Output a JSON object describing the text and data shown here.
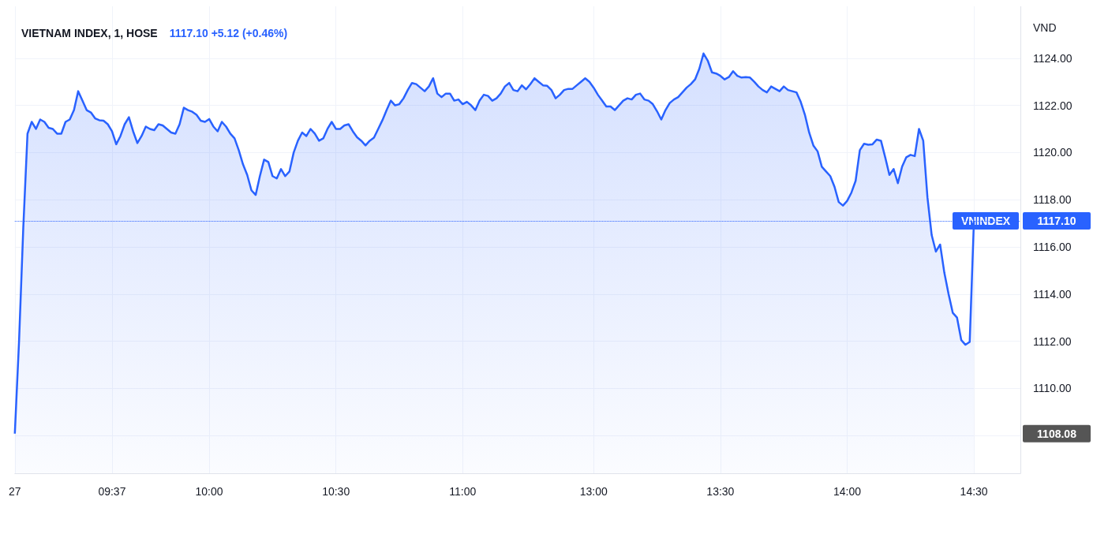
{
  "chart_data": {
    "type": "area",
    "title": "VIETNAM INDEX, 1, HOSE",
    "subtitle": "1117.10 +5.12 (+0.46%)",
    "ylabel": "VND",
    "color": "#2962ff",
    "marker": "none",
    "grid": true,
    "categories": [
      "27",
      null,
      null,
      null,
      null,
      null,
      null,
      null,
      null,
      null,
      null,
      null,
      null,
      null,
      null,
      null,
      null,
      null,
      null,
      null,
      null,
      null,
      null,
      "09:37",
      null,
      null,
      null,
      null,
      null,
      null,
      null,
      null,
      null,
      null,
      null,
      null,
      null,
      null,
      null,
      null,
      null,
      null,
      null,
      null,
      null,
      null,
      "10:00",
      null,
      null,
      null,
      null,
      null,
      null,
      null,
      null,
      null,
      null,
      null,
      null,
      null,
      null,
      null,
      null,
      null,
      null,
      null,
      null,
      null,
      null,
      null,
      null,
      null,
      null,
      null,
      null,
      null,
      "10:30",
      null,
      null,
      null,
      null,
      null,
      null,
      null,
      null,
      null,
      null,
      null,
      null,
      null,
      null,
      null,
      null,
      null,
      null,
      null,
      null,
      null,
      null,
      null,
      null,
      null,
      null,
      null,
      null,
      null,
      "11:00",
      null,
      null,
      null,
      null,
      null,
      null,
      null,
      null,
      null,
      null,
      null,
      null,
      null,
      null,
      null,
      null,
      null,
      null,
      null,
      null,
      null,
      null,
      null,
      null,
      null,
      null,
      null,
      null,
      null,
      null,
      "13:00",
      null,
      null,
      null,
      null,
      null,
      null,
      null,
      null,
      null,
      null,
      null,
      null,
      null,
      null,
      null,
      null,
      null,
      null,
      null,
      null,
      null,
      null,
      null,
      null,
      null,
      null,
      null,
      null,
      null,
      "13:30",
      null,
      null,
      null,
      null,
      null,
      null,
      null,
      null,
      null,
      null,
      null,
      null,
      null,
      null,
      null,
      null,
      null,
      null,
      null,
      null,
      null,
      null,
      null,
      null,
      null,
      null,
      null,
      null,
      null,
      "14:00",
      null,
      null,
      null,
      null,
      null,
      null,
      null,
      null,
      null,
      null,
      null,
      null,
      null,
      null,
      null,
      null,
      null,
      null,
      null,
      null,
      null,
      null,
      null,
      null,
      null,
      null,
      null,
      null,
      null,
      "14:30"
    ],
    "values": [
      1108.08,
      1112.0,
      1116.8,
      1120.8,
      1121.3,
      1121.0,
      1121.4,
      1121.3,
      1121.05,
      1121.0,
      1120.8,
      1120.8,
      1121.3,
      1121.4,
      1121.8,
      1122.6,
      1122.2,
      1121.8,
      1121.7,
      1121.45,
      1121.37,
      1121.35,
      1121.2,
      1120.9,
      1120.35,
      1120.7,
      1121.2,
      1121.5,
      1120.9,
      1120.4,
      1120.7,
      1121.1,
      1121.0,
      1120.95,
      1121.2,
      1121.15,
      1121.0,
      1120.85,
      1120.8,
      1121.2,
      1121.9,
      1121.8,
      1121.73,
      1121.6,
      1121.35,
      1121.3,
      1121.42,
      1121.1,
      1120.9,
      1121.3,
      1121.1,
      1120.8,
      1120.6,
      1120.1,
      1119.5,
      1119.05,
      1118.4,
      1118.2,
      1119.0,
      1119.7,
      1119.6,
      1119.0,
      1118.9,
      1119.3,
      1119.0,
      1119.2,
      1120.0,
      1120.5,
      1120.85,
      1120.7,
      1121.0,
      1120.8,
      1120.5,
      1120.6,
      1121.0,
      1121.3,
      1121.0,
      1121.0,
      1121.15,
      1121.2,
      1120.9,
      1120.65,
      1120.5,
      1120.3,
      1120.5,
      1120.63,
      1121.0,
      1121.37,
      1121.8,
      1122.2,
      1122.0,
      1122.05,
      1122.3,
      1122.65,
      1122.95,
      1122.9,
      1122.75,
      1122.6,
      1122.8,
      1123.15,
      1122.5,
      1122.35,
      1122.5,
      1122.5,
      1122.2,
      1122.25,
      1122.05,
      1122.15,
      1122.0,
      1121.8,
      1122.2,
      1122.45,
      1122.4,
      1122.2,
      1122.3,
      1122.5,
      1122.8,
      1122.95,
      1122.65,
      1122.6,
      1122.85,
      1122.68,
      1122.9,
      1123.15,
      1123.0,
      1122.85,
      1122.83,
      1122.65,
      1122.3,
      1122.45,
      1122.65,
      1122.7,
      1122.7,
      1122.85,
      1123.0,
      1123.15,
      1123.0,
      1122.75,
      1122.45,
      1122.2,
      1121.95,
      1121.95,
      1121.8,
      1122.0,
      1122.2,
      1122.3,
      1122.25,
      1122.45,
      1122.5,
      1122.25,
      1122.2,
      1122.05,
      1121.75,
      1121.4,
      1121.8,
      1122.1,
      1122.25,
      1122.35,
      1122.55,
      1122.75,
      1122.9,
      1123.1,
      1123.55,
      1124.2,
      1123.9,
      1123.4,
      1123.35,
      1123.25,
      1123.1,
      1123.2,
      1123.45,
      1123.25,
      1123.18,
      1123.2,
      1123.18,
      1123.0,
      1122.8,
      1122.65,
      1122.55,
      1122.8,
      1122.7,
      1122.6,
      1122.8,
      1122.65,
      1122.6,
      1122.55,
      1122.15,
      1121.6,
      1120.85,
      1120.3,
      1120.05,
      1119.4,
      1119.2,
      1119.0,
      1118.55,
      1117.9,
      1117.75,
      1117.95,
      1118.3,
      1118.8,
      1120.1,
      1120.37,
      1120.33,
      1120.35,
      1120.55,
      1120.5,
      1119.8,
      1119.05,
      1119.3,
      1118.7,
      1119.4,
      1119.8,
      1119.9,
      1119.85,
      1121.0,
      1120.5,
      1118.1,
      1116.5,
      1115.8,
      1116.1,
      1114.9,
      1114.0,
      1113.2,
      1113.0,
      1112.05,
      1111.85,
      1111.97,
      1117.1
    ],
    "ylim": [
      1106.4,
      1126.2
    ],
    "yticks": [
      {
        "value": 1108,
        "label": null
      },
      {
        "value": 1110,
        "label": "1110.00"
      },
      {
        "value": 1112,
        "label": "1112.00"
      },
      {
        "value": 1114,
        "label": "1114.00"
      },
      {
        "value": 1116,
        "label": "1116.00"
      },
      {
        "value": 1118,
        "label": "1118.00"
      },
      {
        "value": 1120,
        "label": "1120.00"
      },
      {
        "value": 1122,
        "label": "1122.00"
      },
      {
        "value": 1124,
        "label": "1124.00"
      }
    ],
    "ref_lines": [
      {
        "axis": "y",
        "value": 1117.1,
        "label": "VNINDEX",
        "color": "#2962ff",
        "line_style": "dotted"
      }
    ],
    "annotations": [
      "1108.08",
      "1117.10"
    ]
  }
}
